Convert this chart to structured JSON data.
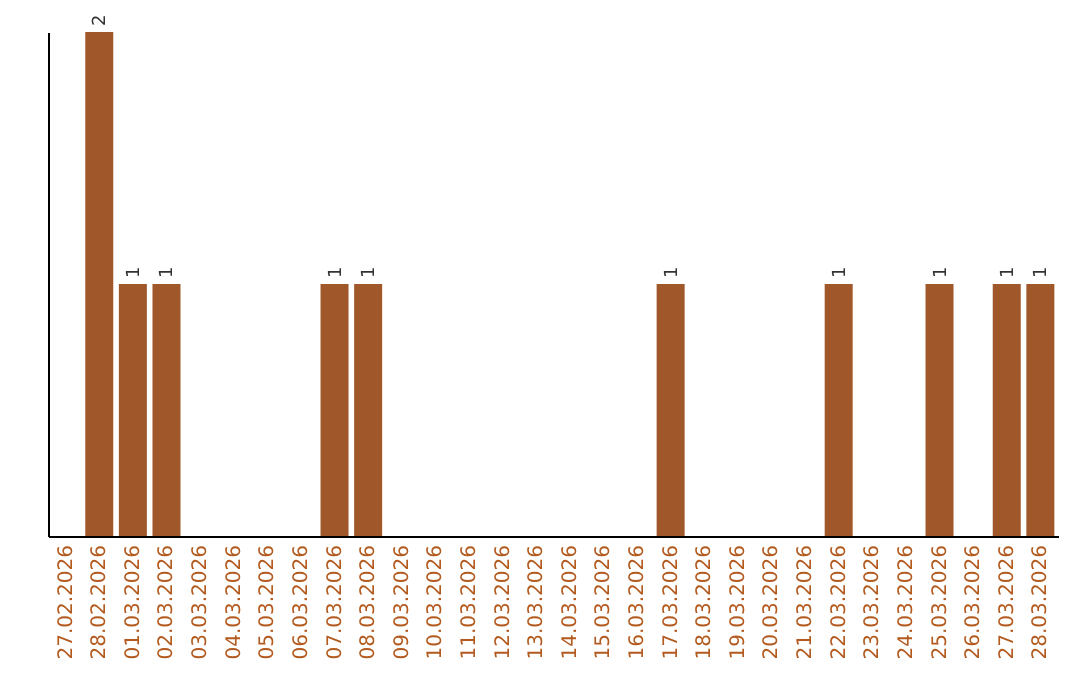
{
  "chart_data": {
    "type": "bar",
    "categories": [
      "27.02.2026",
      "28.02.2026",
      "01.03.2026",
      "02.03.2026",
      "03.03.2026",
      "04.03.2026",
      "05.03.2026",
      "06.03.2026",
      "07.03.2026",
      "08.03.2026",
      "09.03.2026",
      "10.03.2026",
      "11.03.2026",
      "12.03.2026",
      "13.03.2026",
      "14.03.2026",
      "15.03.2026",
      "16.03.2026",
      "17.03.2026",
      "18.03.2026",
      "19.03.2026",
      "20.03.2026",
      "21.03.2026",
      "22.03.2026",
      "23.03.2026",
      "24.03.2026",
      "25.03.2026",
      "26.03.2026",
      "27.03.2026",
      "28.03.2026"
    ],
    "values": [
      0,
      2,
      1,
      1,
      0,
      0,
      0,
      0,
      1,
      1,
      0,
      0,
      0,
      0,
      0,
      0,
      0,
      0,
      1,
      0,
      0,
      0,
      0,
      1,
      0,
      0,
      1,
      0,
      1,
      1
    ],
    "value_labels": [
      null,
      "2",
      "1",
      "1",
      null,
      null,
      null,
      null,
      "1",
      "1",
      null,
      null,
      null,
      null,
      null,
      null,
      null,
      null,
      "1",
      null,
      null,
      null,
      null,
      "1",
      null,
      null,
      "1",
      null,
      "1",
      "1"
    ],
    "color": "#a0572a",
    "ylim": [
      0,
      2
    ],
    "tick_labels": "x",
    "grid": false
  }
}
